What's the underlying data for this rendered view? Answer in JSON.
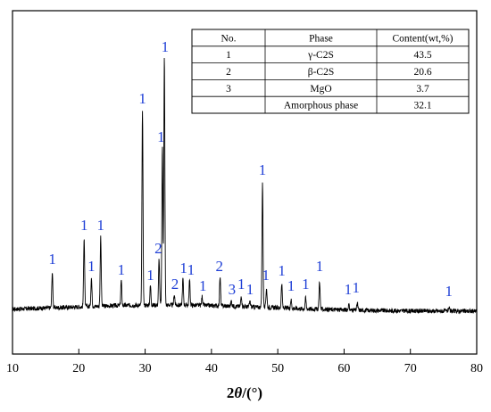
{
  "chart_data": {
    "type": "line",
    "title": "",
    "xlabel": {
      "prefix": "2",
      "theta": "θ",
      "suffix": "/(°)"
    },
    "ylabel": "",
    "xlim": [
      10,
      80
    ],
    "x_ticks": [
      10,
      20,
      30,
      40,
      50,
      60,
      70,
      80
    ],
    "y_ticks_shown": false,
    "grid": false,
    "series": [
      {
        "baseline": 7,
        "peaks": [
          {
            "x": 16.0,
            "h": 40
          },
          {
            "x": 20.8,
            "h": 78
          },
          {
            "x": 21.9,
            "h": 32
          },
          {
            "x": 23.3,
            "h": 78
          },
          {
            "x": 26.4,
            "h": 28
          },
          {
            "x": 29.6,
            "h": 220
          },
          {
            "x": 30.8,
            "h": 22
          },
          {
            "x": 32.1,
            "h": 52
          },
          {
            "x": 32.6,
            "h": 177
          },
          {
            "x": 32.9,
            "h": 278
          },
          {
            "x": 34.4,
            "h": 12
          },
          {
            "x": 35.7,
            "h": 30
          },
          {
            "x": 36.7,
            "h": 28
          },
          {
            "x": 38.6,
            "h": 10
          },
          {
            "x": 41.3,
            "h": 32
          },
          {
            "x": 43.0,
            "h": 6
          },
          {
            "x": 44.5,
            "h": 12
          },
          {
            "x": 45.8,
            "h": 6
          },
          {
            "x": 47.7,
            "h": 140
          },
          {
            "x": 48.3,
            "h": 22
          },
          {
            "x": 50.6,
            "h": 27
          },
          {
            "x": 52.0,
            "h": 10
          },
          {
            "x": 54.2,
            "h": 12
          },
          {
            "x": 56.3,
            "h": 32
          },
          {
            "x": 60.7,
            "h": 6
          },
          {
            "x": 62.0,
            "h": 8
          },
          {
            "x": 75.8,
            "h": 4
          }
        ]
      }
    ],
    "peak_labels": [
      {
        "x": 16.0,
        "text": "1"
      },
      {
        "x": 20.8,
        "text": "1"
      },
      {
        "x": 21.9,
        "text": "1"
      },
      {
        "x": 23.3,
        "text": "1"
      },
      {
        "x": 26.4,
        "text": "1"
      },
      {
        "x": 29.6,
        "text": "1"
      },
      {
        "x": 30.8,
        "text": "1"
      },
      {
        "x": 32.0,
        "text": "2"
      },
      {
        "x": 32.4,
        "text": "1"
      },
      {
        "x": 33.0,
        "text": "1"
      },
      {
        "x": 34.5,
        "text": "2"
      },
      {
        "x": 35.8,
        "text": "1"
      },
      {
        "x": 36.9,
        "text": "1"
      },
      {
        "x": 38.7,
        "text": "1"
      },
      {
        "x": 41.2,
        "text": "2"
      },
      {
        "x": 43.1,
        "text": "3"
      },
      {
        "x": 44.5,
        "text": "1"
      },
      {
        "x": 45.8,
        "text": "1"
      },
      {
        "x": 47.7,
        "text": "1"
      },
      {
        "x": 48.2,
        "text": "1"
      },
      {
        "x": 50.6,
        "text": "1"
      },
      {
        "x": 52.0,
        "text": "1"
      },
      {
        "x": 54.2,
        "text": "1"
      },
      {
        "x": 56.3,
        "text": "1"
      },
      {
        "x": 60.6,
        "text": "1"
      },
      {
        "x": 61.8,
        "text": "1"
      },
      {
        "x": 75.8,
        "text": "1"
      }
    ],
    "table": {
      "headers": [
        "No.",
        "Phase",
        "Content(wt,%)"
      ],
      "rows": [
        [
          "1",
          "γ-C2S",
          "43.5"
        ],
        [
          "2",
          "β-C2S",
          "20.6"
        ],
        [
          "3",
          "MgO",
          "3.7"
        ],
        [
          "",
          "Amorphous phase",
          "32.1"
        ]
      ]
    },
    "colors": {
      "line": "#000000",
      "peak_label": "#1f3fd6",
      "axis": "#000000"
    }
  }
}
